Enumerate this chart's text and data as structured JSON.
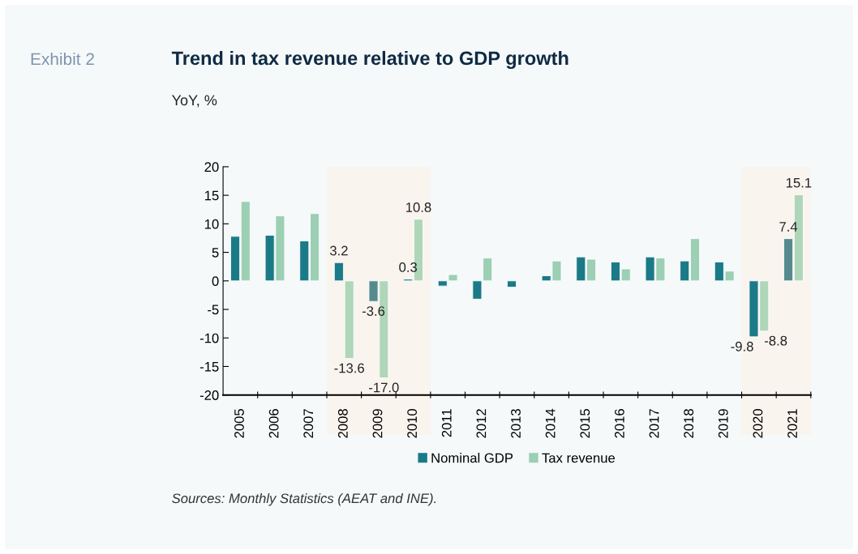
{
  "chart_data": {
    "type": "bar",
    "title": "Trend in tax revenue relative to GDP growth",
    "subtitle": "YoY, %",
    "annotations": [
      "Exhibit 2",
      "Sources: Monthly Statistics (AEAT and INE)."
    ],
    "categories": [
      "2005",
      "2006",
      "2007",
      "2008",
      "2009",
      "2010",
      "2011",
      "2012",
      "2013",
      "2014",
      "2015",
      "2016",
      "2017",
      "2018",
      "2019",
      "2020",
      "2021"
    ],
    "series": [
      {
        "name": "Nominal GDP",
        "color": "#1b7a87",
        "colors": [
          "#1b7a87",
          "#1b7a87",
          "#1b7a87",
          "#1b7a87",
          "#568a8e",
          "#1b7a87",
          "#1b7a87",
          "#1b7a87",
          "#1b7a87",
          "#1b7a87",
          "#1b7a87",
          "#1b7a87",
          "#1b7a87",
          "#1b7a87",
          "#1b7a87",
          "#1b7a87",
          "#568a8e"
        ],
        "values": [
          7.8,
          8.0,
          7.0,
          3.2,
          -3.6,
          0.3,
          -0.9,
          -3.2,
          -1.1,
          0.9,
          4.2,
          3.3,
          4.2,
          3.5,
          3.3,
          -9.8,
          7.4
        ],
        "value_labels": [
          null,
          null,
          null,
          "3.2",
          "-3.6",
          "0.3",
          null,
          null,
          null,
          null,
          null,
          null,
          null,
          null,
          null,
          "-9.8",
          "7.4"
        ]
      },
      {
        "name": "Tax revenue",
        "color": "#9ccfb4",
        "colors": [
          "#9ccfb4",
          "#9ccfb4",
          "#9ccfb4",
          "#afd6b9",
          "#afd6b9",
          "#afd6b9",
          "#9ccfb4",
          "#9ccfb4",
          "#9ccfb4",
          "#9ccfb4",
          "#9ccfb4",
          "#9ccfb4",
          "#9ccfb4",
          "#9ccfb4",
          "#9ccfb4",
          "#afd6b9",
          "#afd6b9"
        ],
        "values": [
          13.9,
          11.4,
          11.8,
          -13.6,
          -17.0,
          10.8,
          1.1,
          4.0,
          null,
          3.5,
          3.8,
          2.1,
          4.0,
          7.4,
          1.7,
          -8.8,
          15.1
        ],
        "value_labels": [
          null,
          null,
          null,
          "-13.6",
          "-17.0",
          "10.8",
          null,
          null,
          null,
          null,
          null,
          null,
          null,
          null,
          null,
          "-8.8",
          "15.1"
        ]
      }
    ],
    "bands": [
      {
        "axis": "x",
        "from": "2008",
        "to": "2010",
        "color": "#faf4ee"
      },
      {
        "axis": "x",
        "from": "2020",
        "to": "2021",
        "color": "#faf4ee"
      }
    ],
    "ylim": [
      -20,
      20
    ],
    "yticks": [
      -20,
      -15,
      -10,
      -5,
      0,
      5,
      10,
      15,
      20
    ],
    "grid": false,
    "legend": "bottom"
  }
}
